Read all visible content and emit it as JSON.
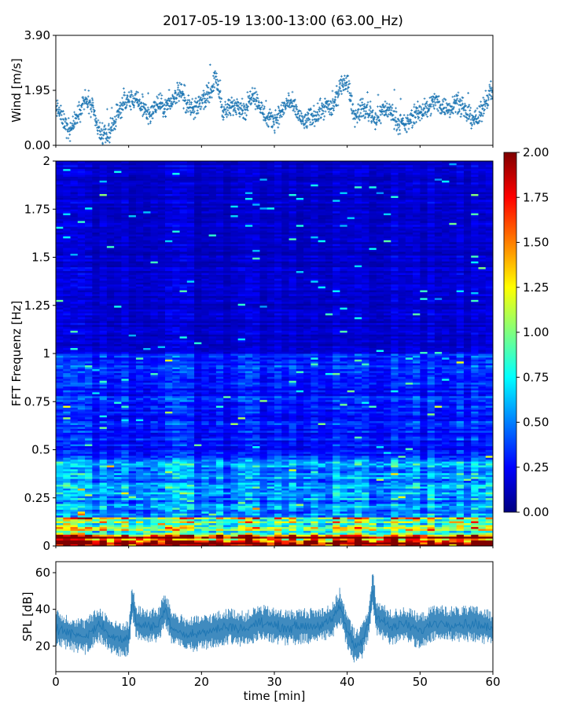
{
  "title": "2017-05-19 13:00-13:00 (63.00_Hz)",
  "colors": {
    "wind_marker": "#1f77b4",
    "spl_line": "#1f77b4",
    "colormap": [
      "#00007f",
      "#0000ff",
      "#007fff",
      "#00ffff",
      "#7fff7f",
      "#ffff00",
      "#ff7f00",
      "#ff0000",
      "#7f0000"
    ]
  },
  "chart_data": [
    {
      "id": "wind",
      "type": "scatter",
      "ylabel": "Wind [m/s]",
      "xlim": [
        0,
        60
      ],
      "ylim": [
        0,
        3.9
      ],
      "yticks": [
        0.0,
        1.95,
        3.9
      ],
      "ytick_labels": [
        "0.00",
        "1.95",
        "3.90"
      ],
      "marker": "+",
      "samples_per_minute": 30,
      "envelope": {
        "x": [
          0,
          1,
          2,
          3,
          4,
          5,
          6,
          7,
          8,
          9,
          10,
          11,
          12,
          13,
          14,
          15,
          16,
          17,
          18,
          19,
          20,
          21,
          22,
          23,
          24,
          25,
          26,
          27,
          28,
          29,
          30,
          31,
          32,
          33,
          34,
          35,
          36,
          37,
          38,
          39,
          40,
          41,
          42,
          43,
          44,
          45,
          46,
          47,
          48,
          49,
          50,
          51,
          52,
          53,
          54,
          55,
          56,
          57,
          58,
          59,
          60
        ],
        "y": [
          1.4,
          0.9,
          0.5,
          1.1,
          1.6,
          1.3,
          0.4,
          0.3,
          0.8,
          1.4,
          1.6,
          1.6,
          1.3,
          1.1,
          1.5,
          1.3,
          1.6,
          2.0,
          1.4,
          1.2,
          1.6,
          1.8,
          2.4,
          1.2,
          1.3,
          1.5,
          1.2,
          1.9,
          1.4,
          0.9,
          0.9,
          1.2,
          1.6,
          1.2,
          0.8,
          1.0,
          1.1,
          1.4,
          1.3,
          2.0,
          2.3,
          1.0,
          1.3,
          1.2,
          0.9,
          1.3,
          1.2,
          0.8,
          0.7,
          1.0,
          1.2,
          1.3,
          1.6,
          1.4,
          1.3,
          1.6,
          1.2,
          1.0,
          0.9,
          1.6,
          2.0
        ]
      }
    },
    {
      "id": "spectrogram",
      "type": "heatmap",
      "ylabel": "FFT Frequenz [Hz]",
      "xlim": [
        0,
        60
      ],
      "ylim": [
        0,
        2
      ],
      "yticks": [
        0,
        0.25,
        0.5,
        0.75,
        1,
        1.25,
        1.5,
        1.75,
        2
      ],
      "ytick_labels": [
        "0",
        "0.25",
        "0.5",
        "0.75",
        "1",
        "1.25",
        "1.5",
        "1.75",
        "2"
      ],
      "time_bins": 60,
      "freq_bins": 200,
      "colorbar": {
        "vmin": 0.0,
        "vmax": 2.0,
        "ticks": [
          0.0,
          0.25,
          0.5,
          0.75,
          1.0,
          1.25,
          1.5,
          1.75,
          2.0
        ],
        "tick_labels": [
          "0.00",
          "0.25",
          "0.50",
          "0.75",
          "1.00",
          "1.25",
          "1.50",
          "1.75",
          "2.00"
        ]
      },
      "features": [
        {
          "f_range": [
            0.0,
            0.06
          ],
          "level": 1.9
        },
        {
          "f_range": [
            0.06,
            0.15
          ],
          "level": 1.0
        },
        {
          "f_range": [
            0.15,
            0.45
          ],
          "level": 0.55
        },
        {
          "f_range": [
            0.45,
            1.0
          ],
          "level": 0.3
        },
        {
          "f_range": [
            1.0,
            2.0
          ],
          "level": 0.15
        }
      ]
    },
    {
      "id": "spl",
      "type": "line",
      "ylabel": "SPL [dB]",
      "xlabel": "time [min]",
      "xlim": [
        0,
        60
      ],
      "ylim": [
        6,
        66
      ],
      "yticks": [
        20,
        40,
        60
      ],
      "ytick_labels": [
        "20",
        "40",
        "60"
      ],
      "xticks": [
        0,
        10,
        20,
        30,
        40,
        50,
        60
      ],
      "xtick_labels": [
        "0",
        "10",
        "20",
        "30",
        "40",
        "50",
        "60"
      ],
      "envelope": {
        "x": [
          0,
          2,
          4,
          6,
          8,
          10,
          10.5,
          11,
          12,
          14,
          15,
          16,
          18,
          20,
          22,
          24,
          26,
          28,
          30,
          32,
          34,
          36,
          38,
          39,
          40,
          41,
          42,
          43,
          43.5,
          44,
          45,
          46,
          48,
          50,
          52,
          54,
          56,
          58,
          60
        ],
        "y": [
          30,
          27,
          25,
          32,
          24,
          24,
          45,
          33,
          31,
          31,
          40,
          30,
          26,
          27,
          29,
          31,
          29,
          33,
          31,
          30,
          31,
          31,
          34,
          42,
          28,
          20,
          22,
          34,
          52,
          36,
          33,
          30,
          32,
          28,
          33,
          32,
          32,
          32,
          29
        ]
      }
    }
  ]
}
